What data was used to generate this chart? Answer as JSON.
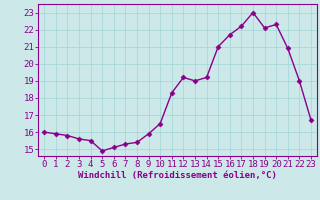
{
  "x": [
    0,
    1,
    2,
    3,
    4,
    5,
    6,
    7,
    8,
    9,
    10,
    11,
    12,
    13,
    14,
    15,
    16,
    17,
    18,
    19,
    20,
    21,
    22,
    23
  ],
  "y": [
    16.0,
    15.9,
    15.8,
    15.6,
    15.5,
    14.9,
    15.1,
    15.3,
    15.4,
    15.9,
    16.5,
    18.3,
    19.2,
    19.0,
    19.2,
    21.0,
    21.7,
    22.2,
    23.0,
    22.1,
    22.3,
    20.9,
    19.0,
    16.7
  ],
  "line_color": "#8B008B",
  "marker": "D",
  "markersize": 2.5,
  "linewidth": 1.0,
  "xlabel": "Windchill (Refroidissement éolien,°C)",
  "xlabel_fontsize": 6.5,
  "xtick_labels": [
    "0",
    "1",
    "2",
    "3",
    "4",
    "5",
    "6",
    "7",
    "8",
    "9",
    "10",
    "11",
    "12",
    "13",
    "14",
    "15",
    "16",
    "17",
    "18",
    "19",
    "20",
    "21",
    "22",
    "23"
  ],
  "ytick_min": 15,
  "ytick_max": 23,
  "ylim": [
    14.6,
    23.5
  ],
  "xlim": [
    -0.5,
    23.5
  ],
  "grid_color": "#a8d8d8",
  "background_color": "#cce8e8",
  "tick_fontsize": 6.5,
  "tick_color": "#8B008B",
  "spine_color": "#8B008B",
  "xlabel_fontweight": "bold"
}
